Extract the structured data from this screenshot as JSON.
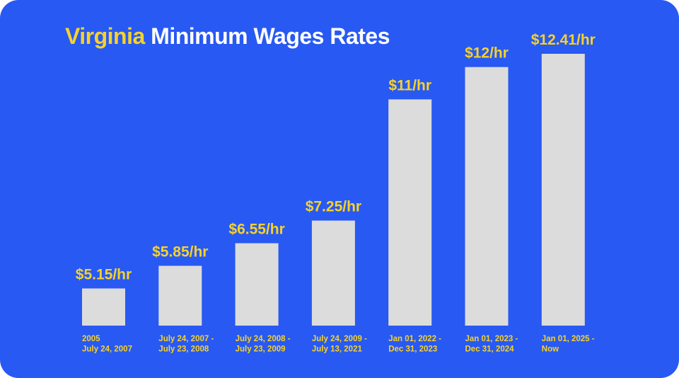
{
  "title": {
    "accent": "Virginia",
    "rest": "Minimum Wages Rates"
  },
  "colors": {
    "background": "#2859f2",
    "bar": "#dcdcdc",
    "accent": "#f6d22a",
    "title_text": "#ffffff"
  },
  "chart_data": {
    "type": "bar",
    "title": "Virginia Minimum Wages Rates",
    "xlabel": "",
    "ylabel": "",
    "grid": false,
    "legend": "none",
    "categories": [
      [
        "2005",
        "July 24, 2007"
      ],
      [
        "July 24, 2007 -",
        "July 23, 2008"
      ],
      [
        "July 24, 2008 -",
        "July 23, 2009"
      ],
      [
        "July 24, 2009 -",
        "July 13, 2021"
      ],
      [
        "Jan 01, 2022 -",
        "Dec 31, 2023"
      ],
      [
        "Jan 01, 2023 -",
        "Dec 31, 2024"
      ],
      [
        "Jan 01, 2025 -",
        "Now"
      ]
    ],
    "values": [
      5.15,
      5.85,
      6.55,
      7.25,
      11,
      12,
      12.41
    ],
    "value_labels": [
      "$5.15/hr",
      "$5.85/hr",
      "$6.55/hr",
      "$7.25/hr",
      "$11/hr",
      "$12/hr",
      "$12.41/hr"
    ],
    "ylim": [
      4,
      12.41
    ]
  }
}
